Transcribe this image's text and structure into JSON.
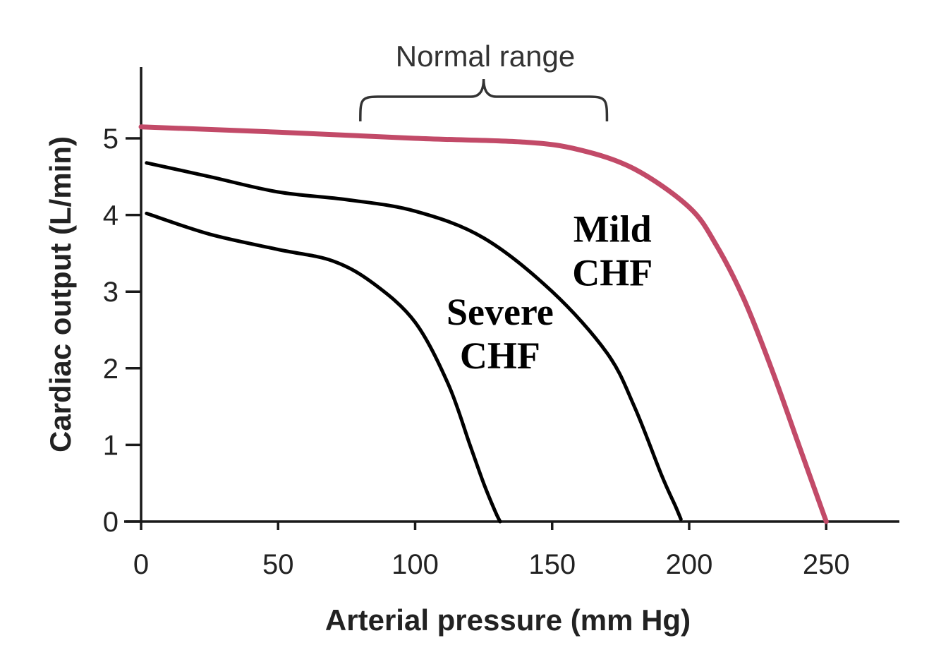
{
  "chart_data": {
    "type": "line",
    "xlabel": "Arterial pressure (mm Hg)",
    "ylabel": "Cardiac output (L/min)",
    "xlim": [
      0,
      275
    ],
    "ylim": [
      0,
      5.8
    ],
    "x_ticks": [
      0,
      50,
      100,
      150,
      200,
      250
    ],
    "y_ticks": [
      0,
      1,
      2,
      3,
      4,
      5
    ],
    "grid": false,
    "annotations": [
      {
        "text": "Normal range",
        "type": "bracket",
        "x_range": [
          80,
          170
        ]
      }
    ],
    "series": [
      {
        "name": "Normal",
        "color": "#c24a68",
        "width": 7,
        "label_lines": [],
        "x": [
          0,
          50,
          100,
          140,
          160,
          180,
          200,
          210,
          220,
          230,
          240,
          245,
          250
        ],
        "y": [
          5.15,
          5.08,
          5.0,
          4.95,
          4.85,
          4.6,
          4.1,
          3.6,
          2.9,
          2.0,
          1.0,
          0.5,
          0.0
        ]
      },
      {
        "name": "Mild CHF",
        "color": "#000000",
        "width": 5,
        "label_lines": [
          "Mild",
          "CHF"
        ],
        "x": [
          2,
          25,
          50,
          75,
          100,
          125,
          150,
          170,
          180,
          190,
          195,
          197
        ],
        "y": [
          4.68,
          4.5,
          4.3,
          4.2,
          4.05,
          3.7,
          3.0,
          2.2,
          1.5,
          0.6,
          0.2,
          0.03
        ]
      },
      {
        "name": "Severe CHF",
        "color": "#000000",
        "width": 5,
        "label_lines": [
          "Severe",
          "CHF"
        ],
        "x": [
          2,
          25,
          50,
          70,
          85,
          100,
          112,
          120,
          125,
          129,
          131
        ],
        "y": [
          4.02,
          3.75,
          3.55,
          3.4,
          3.1,
          2.6,
          1.8,
          1.0,
          0.5,
          0.15,
          0.0
        ]
      }
    ]
  }
}
